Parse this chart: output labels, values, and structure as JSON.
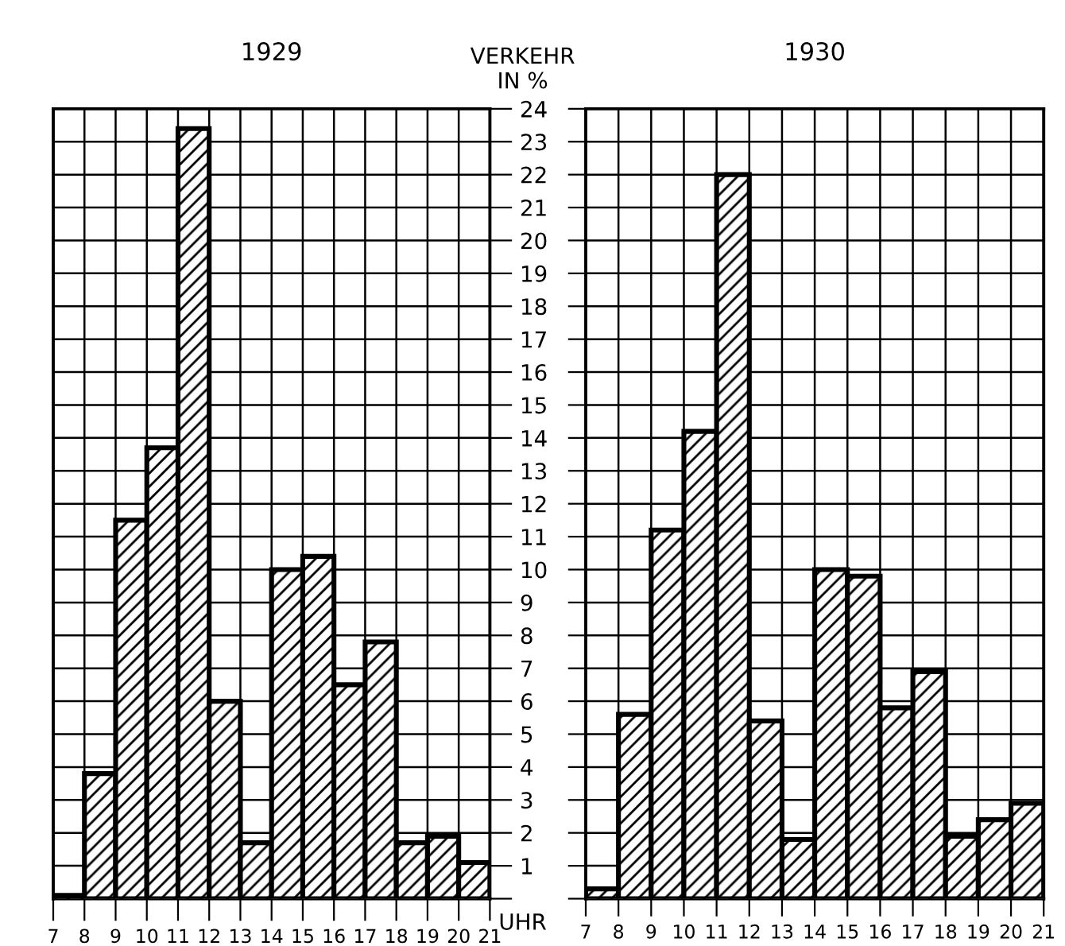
{
  "chart_data": [
    {
      "type": "histogram",
      "title": "1929",
      "ylabel": "VERKEHR\nIN %",
      "xlabel": "UHR",
      "bins": [
        7,
        8,
        9,
        10,
        11,
        12,
        13,
        14,
        15,
        16,
        17,
        18,
        19,
        20,
        21
      ],
      "values": [
        0.1,
        3.8,
        11.5,
        13.7,
        23.4,
        6.0,
        1.7,
        10.0,
        10.4,
        6.5,
        7.8,
        1.7,
        1.9,
        1.1
      ],
      "color": "#000000",
      "xlim": [
        7,
        21
      ],
      "ylim": [
        0,
        24
      ],
      "xticks": [
        7,
        8,
        9,
        10,
        11,
        12,
        13,
        14,
        15,
        16,
        17,
        18,
        19,
        20,
        21
      ],
      "yticks": [
        {
          "value": 0,
          "label": null
        },
        1,
        2,
        3,
        4,
        5,
        6,
        7,
        8,
        9,
        10,
        11,
        12,
        13,
        14,
        15,
        16,
        17,
        18,
        19,
        20,
        21,
        22,
        23,
        24
      ],
      "grid": true
    },
    {
      "type": "histogram",
      "title": "1930",
      "bins": [
        7,
        8,
        9,
        10,
        11,
        12,
        13,
        14,
        15,
        16,
        17,
        18,
        19,
        20,
        21
      ],
      "values": [
        0.3,
        5.6,
        11.2,
        14.2,
        22.0,
        5.4,
        1.8,
        10.0,
        9.8,
        5.8,
        6.9,
        1.9,
        2.4,
        2.9
      ],
      "color": "#000000",
      "xlim": [
        7,
        21
      ],
      "ylim": [
        0,
        24
      ],
      "xticks": [
        7,
        8,
        9,
        10,
        11,
        12,
        13,
        14,
        15,
        16,
        17,
        18,
        19,
        20,
        21
      ],
      "yticks": [
        {
          "value": 0,
          "label": null
        },
        1,
        2,
        3,
        4,
        5,
        6,
        7,
        8,
        9,
        10,
        11,
        12,
        13,
        14,
        15,
        16,
        17,
        18,
        19,
        20,
        21,
        22,
        23,
        24
      ],
      "grid": true,
      "tick_labels": "x"
    }
  ]
}
